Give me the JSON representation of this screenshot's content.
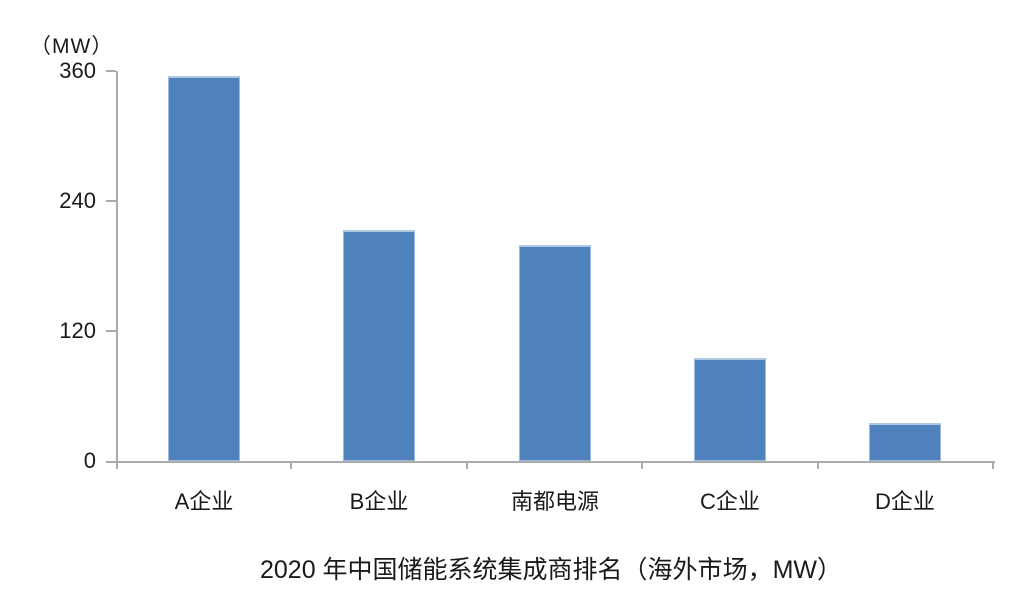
{
  "chart_data": {
    "type": "bar",
    "categories": [
      "A企业",
      "B企业",
      "南都电源",
      "C企业",
      "D企业"
    ],
    "values": [
      355,
      213,
      199,
      95,
      35
    ],
    "title": "2020 年中国储能系统集成商排名（海外市场，MW）",
    "unit_label": "（MW）",
    "xlabel": "",
    "ylabel": "MW",
    "yticks": [
      0,
      120,
      240,
      360
    ],
    "ylim": [
      0,
      360
    ],
    "grid": false,
    "legend": "none",
    "bar_color": "#4F81BD",
    "bar_edge_color": "#AEC8E4",
    "axis_color": "#ababab",
    "text_color": "#1a1a1a"
  }
}
